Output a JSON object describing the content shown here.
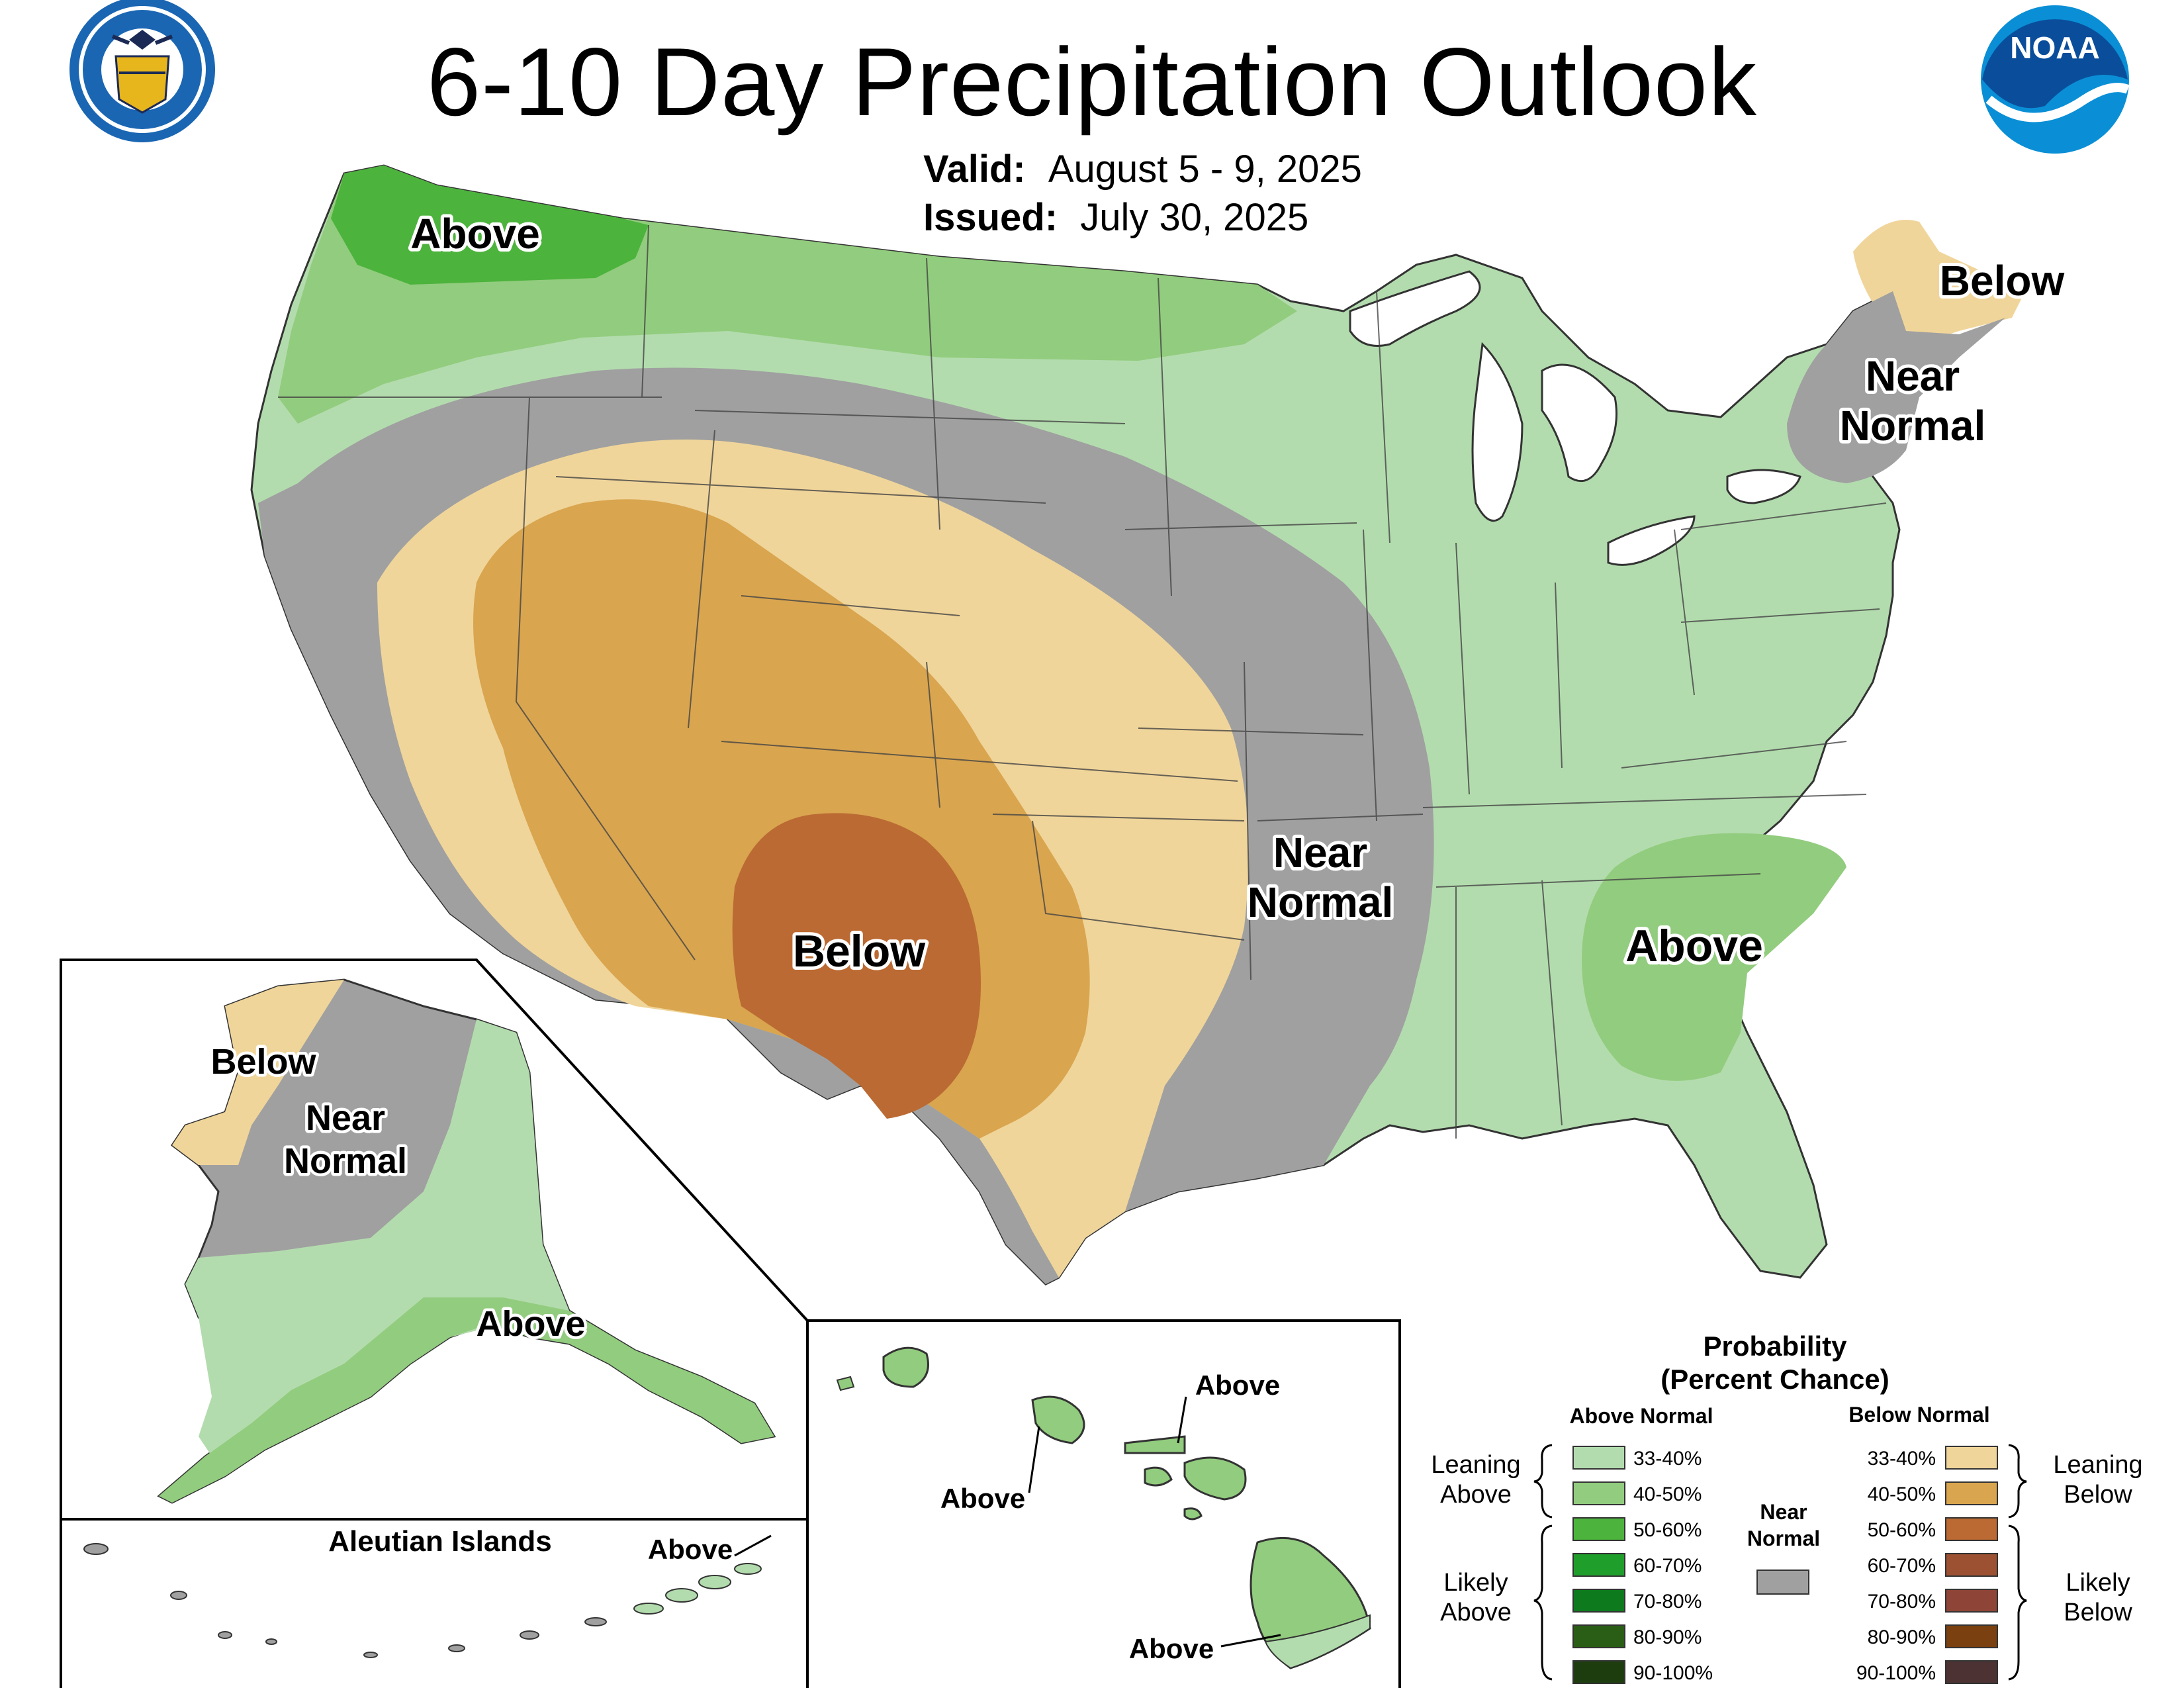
{
  "header": {
    "title": "6-10 Day Precipitation Outlook",
    "valid_label": "Valid:",
    "valid_value": "August 5 - 9, 2025",
    "issued_label": "Issued:",
    "issued_value": "July 30, 2025",
    "left_seal_text": "DEPARTMENT OF COMMERCE · UNITED STATES OF AMERICA",
    "right_logo_text": "NOAA"
  },
  "conus_labels": {
    "nw_above": "Above",
    "ne_below": "Below",
    "ne_near_normal_1": "Near",
    "ne_near_normal_2": "Normal",
    "central_near_normal_1": "Near",
    "central_near_normal_2": "Normal",
    "sw_below": "Below",
    "se_above": "Above"
  },
  "alaska_labels": {
    "below": "Below",
    "near_normal_1": "Near",
    "near_normal_2": "Normal",
    "above": "Above"
  },
  "aleutian": {
    "title": "Aleutian Islands",
    "above": "Above"
  },
  "hawaii_labels": {
    "above_1": "Above",
    "above_2": "Above",
    "above_3": "Above"
  },
  "legend": {
    "title_1": "Probability",
    "title_2": "(Percent Chance)",
    "above_header": "Above Normal",
    "below_header": "Below Normal",
    "leaning_above_1": "Leaning",
    "leaning_above_2": "Above",
    "likely_above_1": "Likely",
    "likely_above_2": "Above",
    "leaning_below_1": "Leaning",
    "leaning_below_2": "Below",
    "likely_below_1": "Likely",
    "likely_below_2": "Below",
    "near_normal_1": "Near",
    "near_normal_2": "Normal",
    "near_normal_color": "#a0a0a0",
    "above_items": [
      {
        "range": "33-40%",
        "color": "#b3dcae"
      },
      {
        "range": "40-50%",
        "color": "#92cc7e"
      },
      {
        "range": "50-60%",
        "color": "#4cb33c"
      },
      {
        "range": "60-70%",
        "color": "#1f9e2c"
      },
      {
        "range": "70-80%",
        "color": "#0e7a1e"
      },
      {
        "range": "80-90%",
        "color": "#2a5e16"
      },
      {
        "range": "90-100%",
        "color": "#1d3d0f"
      }
    ],
    "below_items": [
      {
        "range": "33-40%",
        "color": "#f0d59a"
      },
      {
        "range": "40-50%",
        "color": "#d9a54f"
      },
      {
        "range": "50-60%",
        "color": "#bb6a33"
      },
      {
        "range": "60-70%",
        "color": "#9c5232"
      },
      {
        "range": "70-80%",
        "color": "#8e4437"
      },
      {
        "range": "80-90%",
        "color": "#7a4010"
      },
      {
        "range": "90-100%",
        "color": "#4d3233"
      }
    ]
  },
  "colors": {
    "near_normal": "#a0a0a0",
    "lean_above": "#b3dcae",
    "above_40": "#92cc7e",
    "above_50": "#4cb33c",
    "lean_below": "#f0d59a",
    "below_40": "#d9a54f",
    "below_50": "#bb6a33"
  }
}
